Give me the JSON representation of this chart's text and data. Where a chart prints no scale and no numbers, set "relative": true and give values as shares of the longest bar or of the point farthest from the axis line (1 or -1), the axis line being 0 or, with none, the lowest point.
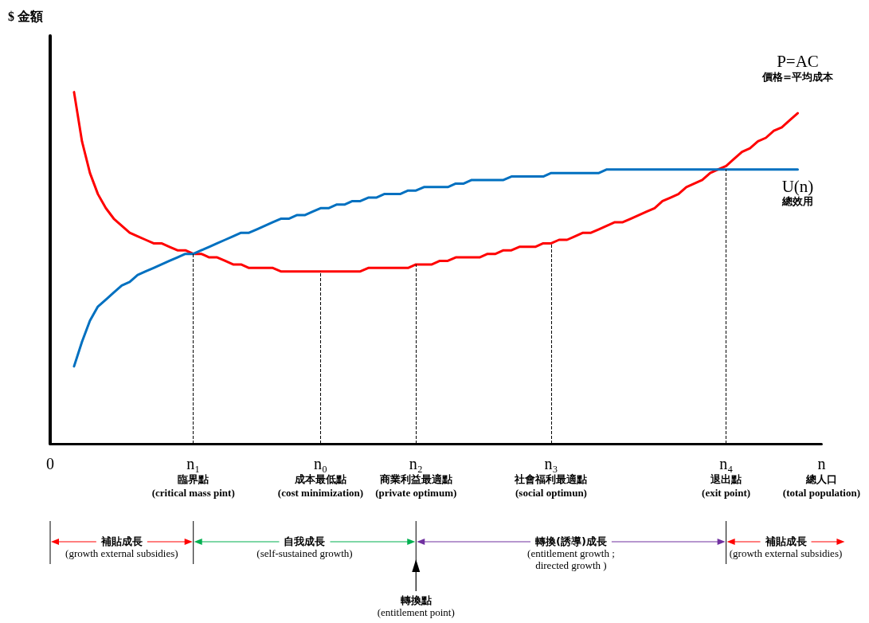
{
  "chart_data": {
    "type": "line",
    "relative": true,
    "marker": "none",
    "categories": [
      "0",
      null,
      null,
      null,
      null,
      null,
      null,
      null,
      null,
      null,
      null,
      null,
      null,
      null,
      null,
      null,
      null,
      null,
      "n₁\n臨界點\n(critical mass pint)",
      null,
      null,
      null,
      null,
      null,
      null,
      null,
      null,
      null,
      null,
      null,
      null,
      null,
      null,
      null,
      "n₀\n成本最低點\n(cost minimization)",
      null,
      null,
      null,
      null,
      null,
      null,
      null,
      null,
      null,
      null,
      null,
      "n₂\n商業利益最適點\n(private optimum)",
      null,
      null,
      null,
      null,
      null,
      null,
      null,
      null,
      null,
      null,
      null,
      null,
      null,
      null,
      null,
      null,
      "n₃\n社會福利最適點\n(social optimun)",
      null,
      null,
      null,
      null,
      null,
      null,
      null,
      null,
      null,
      null,
      null,
      null,
      null,
      null,
      null,
      null,
      null,
      null,
      null,
      null,
      null,
      "n₄\n退出點\n(exit point)",
      null,
      null,
      null,
      null,
      null,
      null,
      null,
      null,
      null,
      null,
      null,
      "n\n總人口\n(total population)"
    ],
    "series": [
      {
        "name": "P=AC\n價格=平均成本",
        "color": "#ff0000",
        "values": [
          null,
          null,
          null,
          1,
          0.86,
          0.77,
          0.71,
          0.67,
          0.64,
          0.62,
          0.6,
          0.59,
          0.58,
          0.57,
          0.57,
          0.56,
          0.55,
          0.55,
          0.54,
          0.54,
          0.53,
          0.53,
          0.52,
          0.51,
          0.51,
          0.5,
          0.5,
          0.5,
          0.5,
          0.49,
          0.49,
          0.49,
          0.49,
          0.49,
          0.49,
          0.49,
          0.49,
          0.49,
          0.49,
          0.49,
          0.5,
          0.5,
          0.5,
          0.5,
          0.5,
          0.5,
          0.51,
          0.51,
          0.51,
          0.52,
          0.52,
          0.53,
          0.53,
          0.53,
          0.53,
          0.54,
          0.54,
          0.55,
          0.55,
          0.56,
          0.56,
          0.56,
          0.57,
          0.57,
          0.58,
          0.58,
          0.59,
          0.6,
          0.6,
          0.61,
          0.62,
          0.63,
          0.63,
          0.64,
          0.65,
          0.66,
          0.67,
          0.69,
          0.7,
          0.71,
          0.73,
          0.74,
          0.75,
          0.77,
          0.78,
          0.79,
          0.81,
          0.83,
          0.84,
          0.86,
          0.87,
          0.89,
          0.9,
          0.92,
          0.94,
          null,
          null,
          null
        ]
      },
      {
        "name": "U(n)\n總效用",
        "color": "#0070c0",
        "values": [
          null,
          null,
          null,
          0.22,
          0.29,
          0.35,
          0.39,
          0.41,
          0.43,
          0.45,
          0.46,
          0.48,
          0.49,
          0.5,
          0.51,
          0.52,
          0.53,
          0.54,
          0.54,
          0.55,
          0.56,
          0.57,
          0.58,
          0.59,
          0.6,
          0.6,
          0.61,
          0.62,
          0.63,
          0.64,
          0.64,
          0.65,
          0.65,
          0.66,
          0.67,
          0.67,
          0.68,
          0.68,
          0.69,
          0.69,
          0.7,
          0.7,
          0.71,
          0.71,
          0.71,
          0.72,
          0.72,
          0.73,
          0.73,
          0.73,
          0.73,
          0.74,
          0.74,
          0.75,
          0.75,
          0.75,
          0.75,
          0.75,
          0.76,
          0.76,
          0.76,
          0.76,
          0.76,
          0.77,
          0.77,
          0.77,
          0.77,
          0.77,
          0.77,
          0.77,
          0.78,
          0.78,
          0.78,
          0.78,
          0.78,
          0.78,
          0.78,
          0.78,
          0.78,
          0.78,
          0.78,
          0.78,
          0.78,
          0.78,
          0.78,
          0.78,
          0.78,
          0.78,
          0.78,
          0.78,
          0.78,
          0.78,
          0.78,
          0.78,
          0.78,
          null,
          null,
          null
        ]
      }
    ],
    "ref_lines": [
      {
        "axis": "x",
        "value": "n₁\n臨界點\n(critical mass pint)",
        "label": null,
        "line_style": "dashed",
        "color": "#000000"
      },
      {
        "axis": "x",
        "value": "n₀\n成本最低點\n(cost minimization)",
        "label": null,
        "line_style": "dashed",
        "color": "#000000"
      },
      {
        "axis": "x",
        "value": "n₂\n商業利益最適點\n(private optimum)",
        "label": null,
        "line_style": "dashed",
        "color": "#000000"
      },
      {
        "axis": "x",
        "value": "n₃\n社會福利最適點\n(social optimun)",
        "label": null,
        "line_style": "dashed",
        "color": "#000000"
      },
      {
        "axis": "x",
        "value": "n₄\n退出點\n(exit point)",
        "label": null,
        "line_style": "dashed",
        "color": "#000000"
      }
    ],
    "annotations": [
      "$ 金額",
      "補貼成長\n(growth external subsidies)",
      "自我成長\n(self-sustained growth)",
      "轉換(誘導)成長\n(entitlement growth ;\ndirected growth )",
      "補貼成長\n(growth external subsidies)",
      "轉換點\n(entitlement point)"
    ]
  }
}
